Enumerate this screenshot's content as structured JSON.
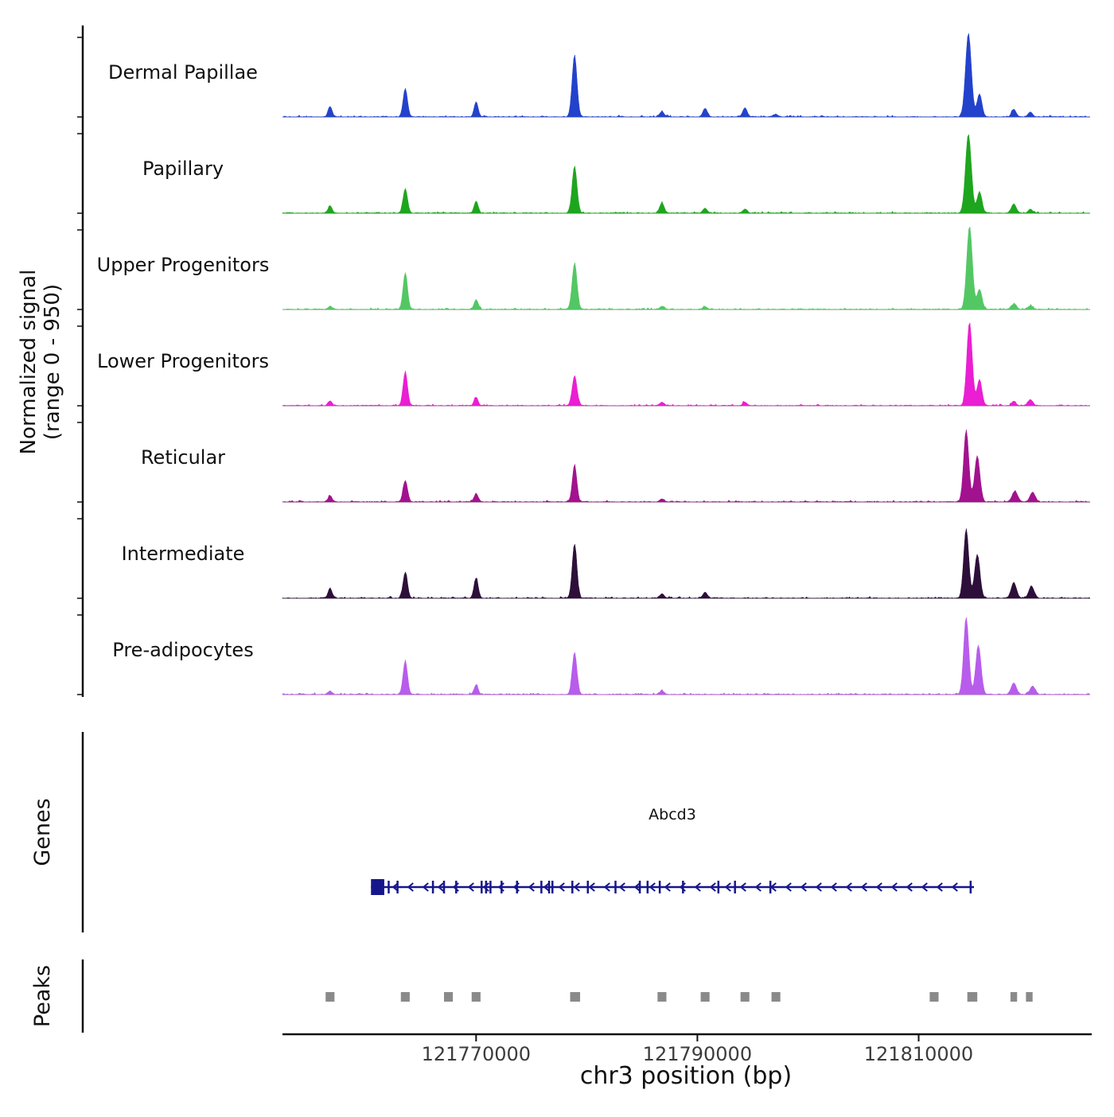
{
  "figure": {
    "y_axis_label_line1": "Normalized signal",
    "y_axis_label_line2": "(range 0 - 950)",
    "x_axis_label": "chr3 position (bp)",
    "genes_section_label": "Genes",
    "peaks_section_label": "Peaks",
    "gene_name": "Abcd3"
  },
  "chart_data": {
    "type": "area",
    "title": "",
    "xlabel": "chr3 position (bp)",
    "ylabel": "Normalized signal (range 0 - 950)",
    "ylim": [
      0,
      950
    ],
    "x_range_bp": [
      121752500,
      121825500
    ],
    "x_ticks_bp": [
      121770000,
      121790000,
      121810000
    ],
    "x_tick_labels": [
      "121770000",
      "121790000",
      "121810000"
    ],
    "tracks": [
      {
        "label": "Dermal Papillae",
        "color": "#2342cc",
        "peaks": [
          [
            121756800,
            120,
            180
          ],
          [
            121763600,
            320,
            200
          ],
          [
            121770000,
            170,
            180
          ],
          [
            121778900,
            700,
            220
          ],
          [
            121786800,
            60,
            200
          ],
          [
            121790700,
            95,
            200
          ],
          [
            121794300,
            105,
            200
          ],
          [
            121797100,
            30,
            200
          ],
          [
            121814500,
            950,
            260
          ],
          [
            121815500,
            260,
            220
          ],
          [
            121818600,
            85,
            200
          ],
          [
            121820100,
            55,
            200
          ]
        ]
      },
      {
        "label": "Papillary",
        "color": "#1ea51e",
        "peaks": [
          [
            121756800,
            85,
            180
          ],
          [
            121763600,
            280,
            200
          ],
          [
            121770000,
            140,
            180
          ],
          [
            121778900,
            530,
            220
          ],
          [
            121786800,
            115,
            200
          ],
          [
            121790700,
            55,
            200
          ],
          [
            121794300,
            45,
            200
          ],
          [
            121814500,
            900,
            260
          ],
          [
            121815500,
            240,
            220
          ],
          [
            121818600,
            105,
            220
          ],
          [
            121820100,
            45,
            200
          ]
        ]
      },
      {
        "label": "Upper Progenitors",
        "color": "#53c763",
        "peaks": [
          [
            121756800,
            35,
            180
          ],
          [
            121763600,
            420,
            200
          ],
          [
            121770000,
            110,
            180
          ],
          [
            121778900,
            520,
            220
          ],
          [
            121786800,
            35,
            200
          ],
          [
            121790700,
            30,
            200
          ],
          [
            121814600,
            950,
            250
          ],
          [
            121815500,
            230,
            220
          ],
          [
            121818600,
            60,
            220
          ],
          [
            121820100,
            40,
            200
          ]
        ]
      },
      {
        "label": "Lower Progenitors",
        "color": "#ea1ed2",
        "peaks": [
          [
            121756800,
            55,
            180
          ],
          [
            121763600,
            380,
            200
          ],
          [
            121770000,
            95,
            180
          ],
          [
            121778900,
            330,
            220
          ],
          [
            121786800,
            40,
            200
          ],
          [
            121794300,
            40,
            200
          ],
          [
            121814600,
            950,
            240
          ],
          [
            121815500,
            300,
            220
          ],
          [
            121818600,
            45,
            200
          ],
          [
            121820100,
            70,
            220
          ]
        ]
      },
      {
        "label": "Reticular",
        "color": "#a2128e",
        "peaks": [
          [
            121756800,
            70,
            180
          ],
          [
            121763600,
            245,
            200
          ],
          [
            121770000,
            95,
            180
          ],
          [
            121778900,
            420,
            200
          ],
          [
            121786800,
            35,
            200
          ],
          [
            121814300,
            820,
            230
          ],
          [
            121815300,
            520,
            240
          ],
          [
            121818700,
            120,
            260
          ],
          [
            121820300,
            110,
            240
          ]
        ]
      },
      {
        "label": "Intermediate",
        "color": "#2d0f3a",
        "peaks": [
          [
            121756800,
            115,
            180
          ],
          [
            121763600,
            295,
            200
          ],
          [
            121770000,
            230,
            190
          ],
          [
            121778900,
            620,
            210
          ],
          [
            121786800,
            50,
            200
          ],
          [
            121790700,
            70,
            200
          ],
          [
            121814300,
            790,
            230
          ],
          [
            121815300,
            500,
            240
          ],
          [
            121818600,
            175,
            240
          ],
          [
            121820200,
            135,
            240
          ]
        ]
      },
      {
        "label": "Pre-adipocytes",
        "color": "#b85cec",
        "peaks": [
          [
            121756800,
            40,
            180
          ],
          [
            121763600,
            380,
            200
          ],
          [
            121770000,
            110,
            180
          ],
          [
            121778900,
            480,
            210
          ],
          [
            121786800,
            40,
            200
          ],
          [
            121814300,
            880,
            230
          ],
          [
            121815400,
            560,
            240
          ],
          [
            121818600,
            130,
            240
          ],
          [
            121820300,
            95,
            240
          ]
        ]
      }
    ],
    "gene_track": {
      "label": "Genes",
      "gene": {
        "name": "Abcd3",
        "strand": "-",
        "color": "#16168c",
        "start_bp": 121760500,
        "end_bp": 121815000,
        "first_exon_bp": [
          121760500,
          121761700
        ],
        "exon_ticks_bp": [
          121762100,
          121762900,
          121766100,
          121767100,
          121768200,
          121770500,
          121770900,
          121771300,
          121772300,
          121773700,
          121775900,
          121776600,
          121776900,
          121778700,
          121780100,
          121782600,
          121784800,
          121785500,
          121786600,
          121788700,
          121791900,
          121793400,
          121796600,
          121814700
        ]
      }
    },
    "peaks_track": {
      "label": "Peaks",
      "color": "#8a8a8a",
      "intervals_bp": [
        [
          121756400,
          121757200
        ],
        [
          121763200,
          121764000
        ],
        [
          121767100,
          121767900
        ],
        [
          121769600,
          121770400
        ],
        [
          121778500,
          121779400
        ],
        [
          121786400,
          121787200
        ],
        [
          121790300,
          121791100
        ],
        [
          121793900,
          121794700
        ],
        [
          121796700,
          121797500
        ],
        [
          121811000,
          121811800
        ],
        [
          121814400,
          121815300
        ],
        [
          121818300,
          121818900
        ],
        [
          121819700,
          121820300
        ]
      ]
    }
  }
}
